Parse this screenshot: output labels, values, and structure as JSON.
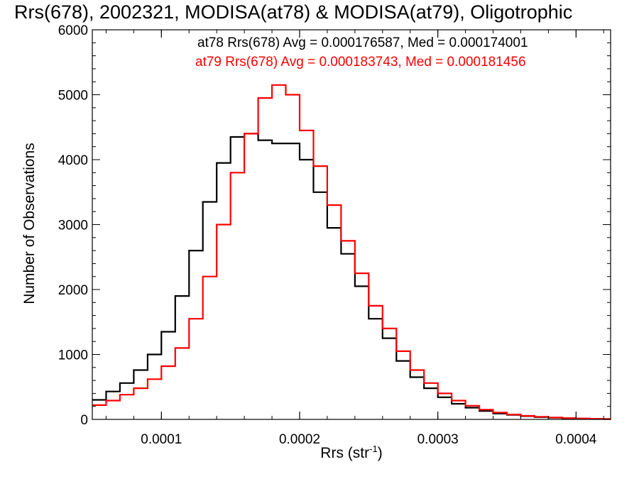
{
  "chart_data": {
    "type": "line",
    "title": "Rrs(678), 2002321, MODISA(at78) & MODISA(at79), Oligotrophic",
    "xlabel": "Rrs (str",
    "xlabel_sup": "-1",
    "xlabel_close": ")",
    "ylabel": "Number of Observations",
    "xlim": [
      5e-05,
      0.000425
    ],
    "ylim": [
      0,
      6000
    ],
    "x_ticks": [
      0.0001,
      0.0002,
      0.0003,
      0.0004
    ],
    "x_tick_labels": [
      "0.0001",
      "0.0002",
      "0.0003",
      "0.0004"
    ],
    "y_ticks": [
      0,
      1000,
      2000,
      3000,
      4000,
      5000,
      6000
    ],
    "y_tick_labels": [
      "0",
      "1000",
      "2000",
      "3000",
      "4000",
      "5000",
      "6000"
    ],
    "step": true,
    "series": [
      {
        "name": "at78",
        "color": "#000000",
        "legend_text": "at78 Rrs(678) Avg = 0.000176587, Med = 0.000174001",
        "points": [
          [
            5e-05,
            300
          ],
          [
            6e-05,
            430
          ],
          [
            7e-05,
            560
          ],
          [
            8e-05,
            760
          ],
          [
            9e-05,
            1000
          ],
          [
            0.0001,
            1350
          ],
          [
            0.00011,
            1900
          ],
          [
            0.00012,
            2600
          ],
          [
            0.00013,
            3350
          ],
          [
            0.00014,
            3950
          ],
          [
            0.00015,
            4350
          ],
          [
            0.00016,
            4400
          ],
          [
            0.00017,
            4300
          ],
          [
            0.00018,
            4250
          ],
          [
            0.00019,
            4250
          ],
          [
            0.0002,
            4000
          ],
          [
            0.00021,
            3500
          ],
          [
            0.00022,
            2950
          ],
          [
            0.00023,
            2550
          ],
          [
            0.00024,
            2050
          ],
          [
            0.00025,
            1550
          ],
          [
            0.00026,
            1250
          ],
          [
            0.00027,
            900
          ],
          [
            0.00028,
            650
          ],
          [
            0.00029,
            480
          ],
          [
            0.0003,
            340
          ],
          [
            0.00031,
            240
          ],
          [
            0.00032,
            180
          ],
          [
            0.00033,
            130
          ],
          [
            0.00034,
            90
          ],
          [
            0.00035,
            70
          ],
          [
            0.00036,
            50
          ],
          [
            0.00037,
            35
          ],
          [
            0.00038,
            25
          ],
          [
            0.00039,
            18
          ],
          [
            0.0004,
            12
          ],
          [
            0.00041,
            8
          ],
          [
            0.00042,
            5
          ]
        ]
      },
      {
        "name": "at79",
        "color": "#ff0000",
        "legend_text": "at79 Rrs(678) Avg = 0.000183743, Med = 0.000181456",
        "points": [
          [
            5e-05,
            220
          ],
          [
            6e-05,
            290
          ],
          [
            7e-05,
            380
          ],
          [
            8e-05,
            480
          ],
          [
            9e-05,
            620
          ],
          [
            0.0001,
            820
          ],
          [
            0.00011,
            1100
          ],
          [
            0.00012,
            1550
          ],
          [
            0.00013,
            2200
          ],
          [
            0.00014,
            3000
          ],
          [
            0.00015,
            3800
          ],
          [
            0.00016,
            4400
          ],
          [
            0.00017,
            4950
          ],
          [
            0.00018,
            5150
          ],
          [
            0.00019,
            5000
          ],
          [
            0.0002,
            4450
          ],
          [
            0.00021,
            3900
          ],
          [
            0.00022,
            3300
          ],
          [
            0.00023,
            2750
          ],
          [
            0.00024,
            2250
          ],
          [
            0.00025,
            1750
          ],
          [
            0.00026,
            1400
          ],
          [
            0.00027,
            1050
          ],
          [
            0.00028,
            760
          ],
          [
            0.00029,
            560
          ],
          [
            0.0003,
            400
          ],
          [
            0.00031,
            290
          ],
          [
            0.00032,
            210
          ],
          [
            0.00033,
            150
          ],
          [
            0.00034,
            105
          ],
          [
            0.00035,
            75
          ],
          [
            0.00036,
            55
          ],
          [
            0.00037,
            40
          ],
          [
            0.00038,
            28
          ],
          [
            0.00039,
            20
          ],
          [
            0.0004,
            14
          ],
          [
            0.00041,
            9
          ],
          [
            0.00042,
            6
          ]
        ]
      }
    ]
  }
}
